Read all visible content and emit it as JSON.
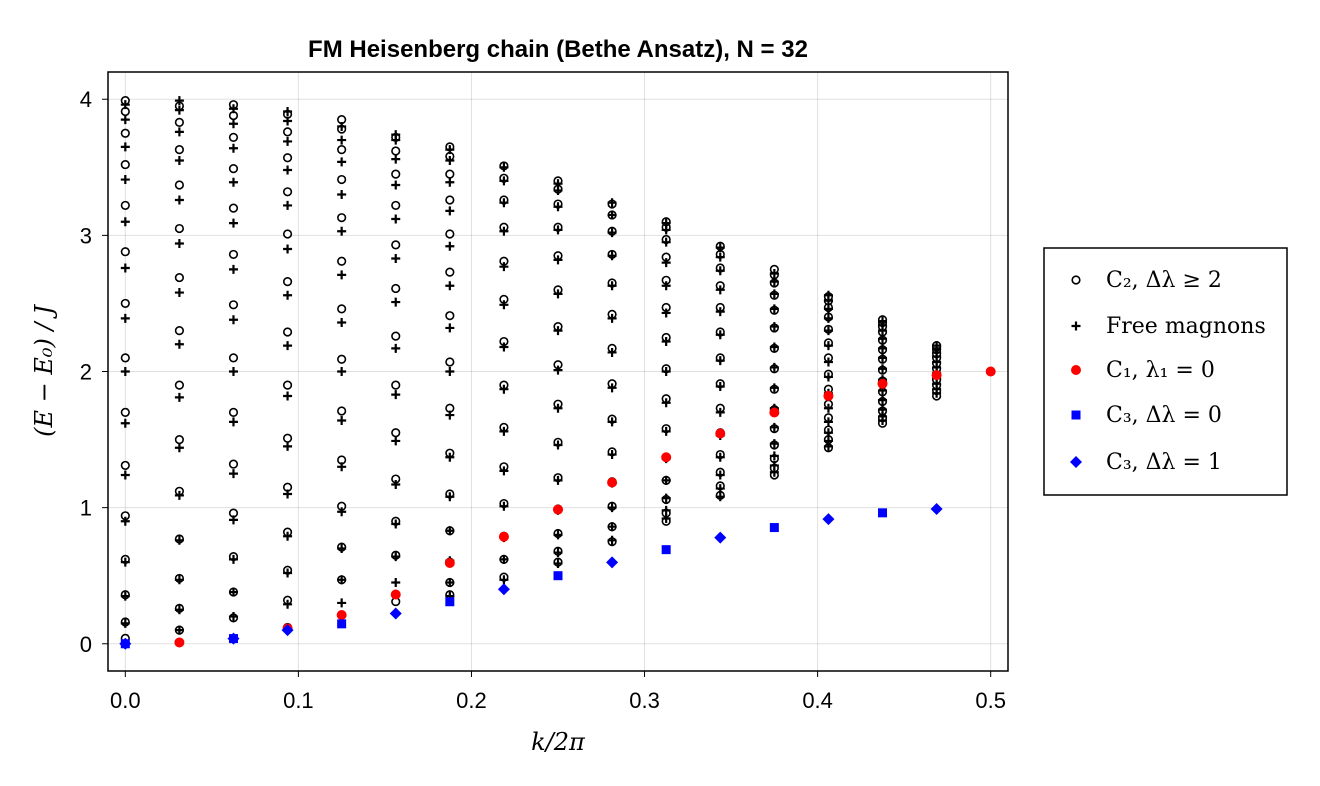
{
  "chart_data": {
    "type": "scatter",
    "title": "FM Heisenberg chain (Bethe Ansatz), N = 32",
    "xlabel": "k/2π",
    "ylabel": "(E − E₀) / J",
    "xlim": [
      -0.01,
      0.51
    ],
    "ylim": [
      -0.2,
      4.2
    ],
    "x_ticks": [
      "0.0",
      "0.1",
      "0.2",
      "0.3",
      "0.4",
      "0.5"
    ],
    "y_ticks": [
      "0",
      "1",
      "2",
      "3",
      "4"
    ],
    "grid": true,
    "legend_position": "right",
    "N": 32,
    "series": [
      {
        "name": "C₂, Δλ ≥ 2",
        "marker": "open-circle",
        "color": "#000000",
        "points": [
          {
            "m": 0,
            "y": [
              0.04,
              0.16,
              0.36,
              0.62,
              0.94,
              1.31,
              1.7,
              2.1,
              2.5,
              2.88,
              3.22,
              3.52,
              3.75,
              3.91,
              3.99
            ]
          },
          {
            "m": 1,
            "y": [
              0.1,
              0.26,
              0.48,
              0.77,
              1.12,
              1.5,
              1.9,
              2.3,
              2.69,
              3.05,
              3.37,
              3.63,
              3.83,
              3.95
            ]
          },
          {
            "m": 2,
            "y": [
              0.19,
              0.38,
              0.64,
              0.96,
              1.32,
              1.7,
              2.1,
              2.49,
              2.86,
              3.2,
              3.49,
              3.72,
              3.88,
              3.96
            ]
          },
          {
            "m": 3,
            "y": [
              0.12,
              0.32,
              0.54,
              0.82,
              1.15,
              1.51,
              1.9,
              2.29,
              2.66,
              3.01,
              3.32,
              3.57,
              3.76,
              3.89
            ]
          },
          {
            "m": 4,
            "y": [
              0.47,
              0.71,
              1.01,
              1.35,
              1.71,
              2.09,
              2.46,
              2.81,
              3.13,
              3.41,
              3.63,
              3.78,
              3.85
            ]
          },
          {
            "m": 5,
            "y": [
              0.31,
              0.65,
              0.9,
              1.21,
              1.55,
              1.9,
              2.26,
              2.61,
              2.93,
              3.22,
              3.45,
              3.62,
              3.72
            ]
          },
          {
            "m": 6,
            "y": [
              0.36,
              0.45,
              0.6,
              0.83,
              1.1,
              1.4,
              1.73,
              2.07,
              2.41,
              2.73,
              3.01,
              3.26,
              3.45,
              3.58,
              3.65
            ]
          },
          {
            "m": 7,
            "y": [
              0.49,
              0.62,
              0.79,
              1.03,
              1.3,
              1.59,
              1.9,
              2.22,
              2.53,
              2.81,
              3.06,
              3.26,
              3.42,
              3.51
            ]
          },
          {
            "m": 8,
            "y": [
              0.6,
              0.68,
              0.81,
              0.99,
              1.22,
              1.48,
              1.76,
              2.05,
              2.33,
              2.6,
              2.85,
              3.06,
              3.23,
              3.34,
              3.4
            ]
          },
          {
            "m": 9,
            "y": [
              0.75,
              0.86,
              1.01,
              1.19,
              1.41,
              1.65,
              1.91,
              2.17,
              2.42,
              2.65,
              2.86,
              3.03,
              3.15,
              3.23
            ]
          },
          {
            "m": 10,
            "y": [
              0.9,
              0.96,
              1.06,
              1.2,
              1.37,
              1.58,
              1.8,
              2.02,
              2.25,
              2.47,
              2.67,
              2.84,
              2.97,
              3.06,
              3.1
            ]
          },
          {
            "m": 11,
            "y": [
              1.09,
              1.16,
              1.26,
              1.39,
              1.55,
              1.73,
              1.91,
              2.1,
              2.29,
              2.47,
              2.63,
              2.76,
              2.86,
              2.92
            ]
          },
          {
            "m": 12,
            "y": [
              1.24,
              1.29,
              1.36,
              1.46,
              1.58,
              1.72,
              1.87,
              2.02,
              2.17,
              2.32,
              2.45,
              2.56,
              2.65,
              2.71,
              2.75
            ]
          },
          {
            "m": 13,
            "y": [
              1.44,
              1.5,
              1.57,
              1.66,
              1.76,
              1.87,
              1.98,
              2.1,
              2.21,
              2.31,
              2.4,
              2.47,
              2.52,
              2.55
            ]
          },
          {
            "m": 14,
            "y": [
              1.62,
              1.66,
              1.71,
              1.78,
              1.85,
              1.93,
              2.01,
              2.09,
              2.16,
              2.23,
              2.29,
              2.33,
              2.36,
              2.38
            ]
          },
          {
            "m": 15,
            "y": [
              1.82,
              1.86,
              1.9,
              1.94,
              1.98,
              2.02,
              2.06,
              2.1,
              2.13,
              2.16,
              2.18,
              2.19
            ]
          }
        ]
      },
      {
        "name": "Free magnons",
        "marker": "plus",
        "color": "#000000",
        "points": [
          {
            "m": 0,
            "y": [
              0.0,
              0.15,
              0.35,
              0.6,
              0.9,
              1.24,
              1.62,
              2.0,
              2.39,
              2.76,
              3.1,
              3.41,
              3.65,
              3.85,
              3.96
            ]
          },
          {
            "m": 1,
            "y": [
              0.1,
              0.25,
              0.47,
              0.76,
              1.09,
              1.44,
              1.81,
              2.2,
              2.58,
              2.94,
              3.26,
              3.55,
              3.76,
              3.92,
              3.99
            ]
          },
          {
            "m": 2,
            "y": [
              0.04,
              0.2,
              0.38,
              0.62,
              0.91,
              1.25,
              1.63,
              2.0,
              2.38,
              2.75,
              3.09,
              3.39,
              3.64,
              3.82,
              3.93
            ]
          },
          {
            "m": 3,
            "y": [
              0.11,
              0.29,
              0.52,
              0.79,
              1.1,
              1.45,
              1.82,
              2.19,
              2.56,
              2.9,
              3.22,
              3.48,
              3.69,
              3.84,
              3.91
            ]
          },
          {
            "m": 4,
            "y": [
              0.3,
              0.47,
              0.7,
              0.97,
              1.3,
              1.64,
              2.0,
              2.36,
              2.71,
              3.03,
              3.3,
              3.54,
              3.7,
              3.8
            ]
          },
          {
            "m": 5,
            "y": [
              0.45,
              0.64,
              0.88,
              1.17,
              1.49,
              1.83,
              2.17,
              2.51,
              2.83,
              3.12,
              3.37,
              3.56,
              3.7,
              3.74
            ]
          },
          {
            "m": 6,
            "y": [
              0.35,
              0.45,
              0.61,
              0.83,
              1.08,
              1.37,
              1.68,
              2.0,
              2.32,
              2.63,
              2.92,
              3.18,
              3.39,
              3.55,
              3.63
            ]
          },
          {
            "m": 7,
            "y": [
              0.47,
              0.62,
              0.78,
              1.01,
              1.27,
              1.56,
              1.87,
              2.18,
              2.49,
              2.77,
              3.03,
              3.24,
              3.4,
              3.5
            ]
          },
          {
            "m": 8,
            "y": [
              0.59,
              0.67,
              0.8,
              0.98,
              1.2,
              1.46,
              1.73,
              2.01,
              2.3,
              2.57,
              2.82,
              3.04,
              3.21,
              3.33,
              3.38
            ]
          },
          {
            "m": 9,
            "y": [
              0.76,
              0.86,
              1.0,
              1.18,
              1.39,
              1.63,
              1.88,
              2.14,
              2.39,
              2.63,
              2.85,
              3.02,
              3.15,
              3.24
            ]
          },
          {
            "m": 10,
            "y": [
              0.92,
              0.98,
              1.07,
              1.2,
              1.36,
              1.56,
              1.77,
              2.0,
              2.22,
              2.43,
              2.63,
              2.8,
              2.95,
              3.04,
              3.09
            ]
          },
          {
            "m": 11,
            "y": [
              1.08,
              1.14,
              1.24,
              1.37,
              1.53,
              1.7,
              1.89,
              2.08,
              2.27,
              2.44,
              2.6,
              2.74,
              2.84,
              2.91
            ]
          },
          {
            "m": 12,
            "y": [
              1.26,
              1.31,
              1.38,
              1.47,
              1.59,
              1.73,
              1.88,
              2.03,
              2.18,
              2.33,
              2.46,
              2.57,
              2.66,
              2.72
            ]
          },
          {
            "m": 13,
            "y": [
              1.45,
              1.49,
              1.55,
              1.63,
              1.73,
              1.84,
              1.96,
              2.07,
              2.19,
              2.3,
              2.39,
              2.46,
              2.52,
              2.56
            ]
          },
          {
            "m": 14,
            "y": [
              1.64,
              1.67,
              1.72,
              1.79,
              1.86,
              1.94,
              2.02,
              2.1,
              2.17,
              2.24,
              2.3,
              2.34,
              2.37
            ]
          },
          {
            "m": 15,
            "y": [
              1.84,
              1.87,
              1.91,
              1.95,
              1.99,
              2.03,
              2.07,
              2.11,
              2.14,
              2.17,
              2.19
            ]
          }
        ]
      },
      {
        "name": "C₁, λ₁ = 0",
        "marker": "filled-circle",
        "color": "#ff0000",
        "points": [
          [
            0.03125,
            0.0096
          ],
          [
            0.09375,
            0.1134
          ],
          [
            0.125,
            0.2113
          ],
          [
            0.15625,
            0.362
          ],
          [
            0.1875,
            0.5933
          ],
          [
            0.21875,
            0.7865
          ],
          [
            0.25,
            0.9856
          ],
          [
            0.28125,
            1.1847
          ],
          [
            0.3125,
            1.3702
          ],
          [
            0.34375,
            1.5447
          ],
          [
            0.375,
            1.6987
          ],
          [
            0.40625,
            1.8206
          ],
          [
            0.4375,
            1.9096
          ],
          [
            0.46875,
            1.9738
          ],
          [
            0.5,
            2.0
          ]
        ]
      },
      {
        "name": "C₃, Δλ = 0",
        "marker": "filled-square",
        "color": "#0000ff",
        "points": [
          [
            0.0,
            0.0
          ],
          [
            0.0625,
            0.0381
          ],
          [
            0.125,
            0.1464
          ],
          [
            0.1875,
            0.3087
          ],
          [
            0.25,
            0.5
          ],
          [
            0.3125,
            0.6913
          ],
          [
            0.375,
            0.8536
          ],
          [
            0.4375,
            0.9619
          ]
        ]
      },
      {
        "name": "C₃, Δλ = 1",
        "marker": "filled-diamond",
        "color": "#0000ff",
        "points": [
          [
            0.0,
            0.0
          ],
          [
            0.0625,
            0.0381
          ],
          [
            0.09375,
            0.1
          ],
          [
            0.15625,
            0.2222
          ],
          [
            0.21875,
            0.4004
          ],
          [
            0.28125,
            0.5982
          ],
          [
            0.34375,
            0.7795
          ],
          [
            0.40625,
            0.9157
          ],
          [
            0.46875,
            0.9904
          ]
        ]
      }
    ]
  }
}
